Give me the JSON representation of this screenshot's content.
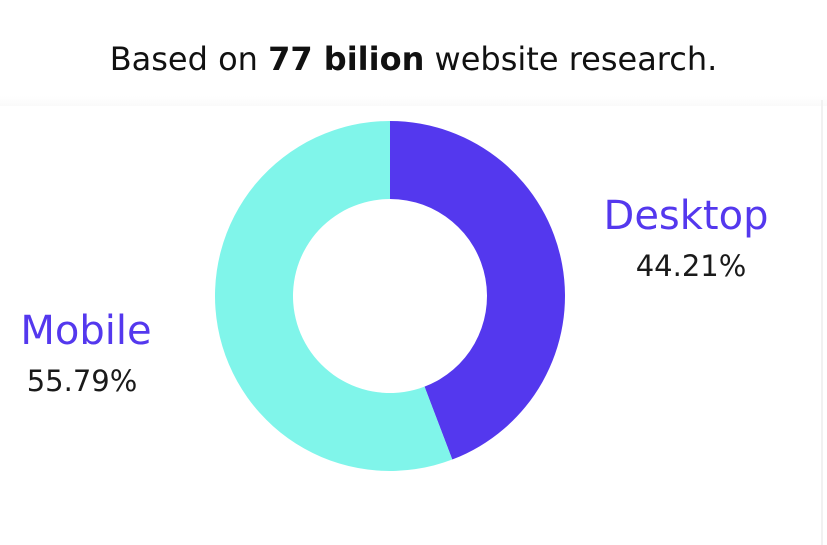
{
  "caption": {
    "prefix": "Based on ",
    "bold": "77 bilion",
    "suffix": " website research."
  },
  "chart_data": {
    "type": "pie",
    "donut": true,
    "categories": [
      "Desktop",
      "Mobile"
    ],
    "values": [
      44.21,
      55.79
    ],
    "value_labels": [
      "44.21%",
      "55.79%"
    ],
    "colors": [
      "#5438ee",
      "#80f5ea"
    ],
    "label_color": "#5438ee",
    "start": "top, clockwise",
    "legend": "none"
  }
}
